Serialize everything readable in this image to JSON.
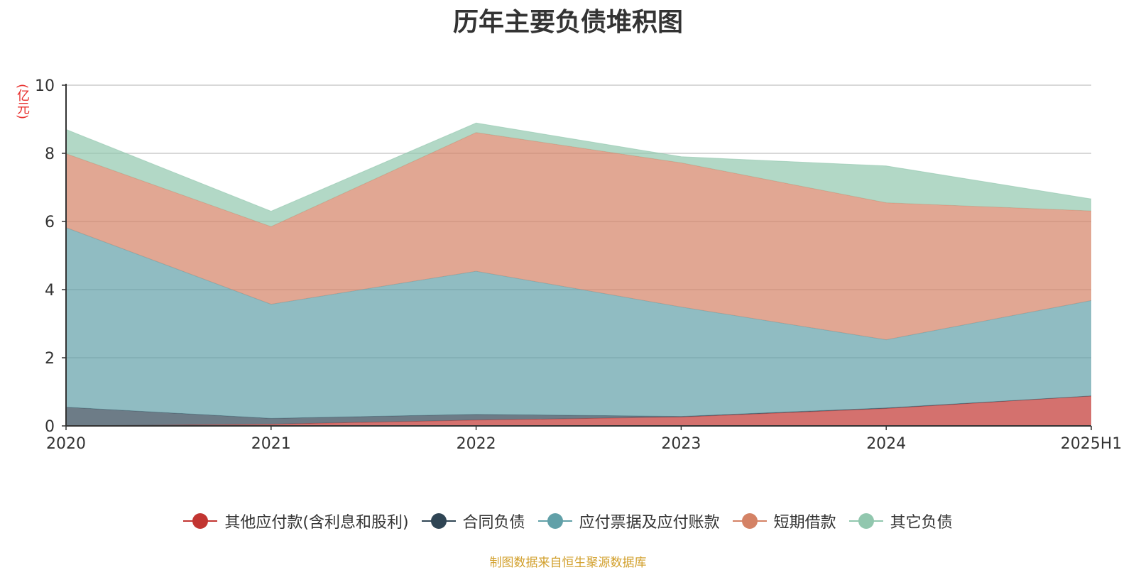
{
  "chart_data": {
    "type": "area",
    "title": "历年主要负债堆积图",
    "y_unit": "(亿元)",
    "x": [
      "2020",
      "2021",
      "2022",
      "2023",
      "2024",
      "2025H1"
    ],
    "y_ticks": [
      "0",
      "2",
      "4",
      "6",
      "8",
      "10"
    ],
    "ylim": [
      0,
      10
    ],
    "stacked": true,
    "grid": true,
    "legend_position": "bottom",
    "series": [
      {
        "name": "其他应付款(含利息和股利)",
        "color": "#c23531",
        "values": [
          0.0,
          0.05,
          0.17,
          0.26,
          0.51,
          0.88
        ]
      },
      {
        "name": "合同负债",
        "color": "#2f4554",
        "values": [
          0.55,
          0.17,
          0.17,
          0.02,
          0.02,
          0.0
        ]
      },
      {
        "name": "应付票据及应付账款",
        "color": "#61a0a8",
        "values": [
          5.27,
          3.35,
          4.2,
          3.21,
          2.0,
          2.8
        ]
      },
      {
        "name": "短期借款",
        "color": "#d48265",
        "values": [
          2.17,
          2.28,
          4.07,
          4.23,
          4.02,
          2.63
        ]
      },
      {
        "name": "其它负债",
        "color": "#91c7ae",
        "values": [
          0.71,
          0.45,
          0.28,
          0.18,
          1.08,
          0.35
        ]
      }
    ]
  },
  "source_note": "制图数据来自恒生聚源数据库"
}
